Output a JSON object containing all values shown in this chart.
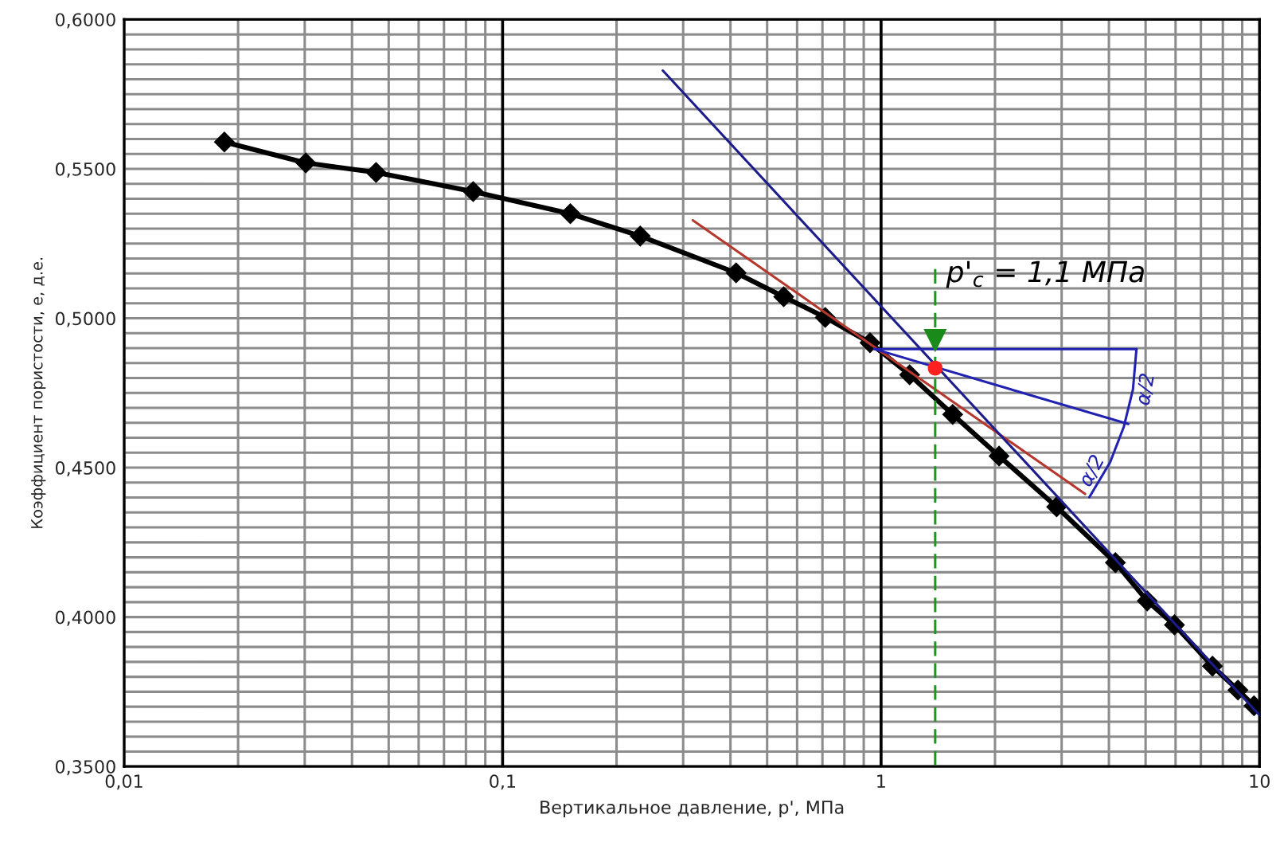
{
  "chart_data": {
    "type": "line",
    "xlabel": "Вертикальное давление, p', МПа",
    "ylabel": "Коэффициент пористости, е, д.е.",
    "log": "x",
    "xlim": [
      0.01,
      10
    ],
    "ylim": [
      0.35,
      0.6
    ],
    "xticks": [
      {
        "value": 0.01,
        "label": "0,01"
      },
      {
        "value": 0.02,
        "label": null
      },
      {
        "value": 0.03,
        "label": null
      },
      {
        "value": 0.04,
        "label": null
      },
      {
        "value": 0.05,
        "label": null
      },
      {
        "value": 0.06,
        "label": null
      },
      {
        "value": 0.07,
        "label": null
      },
      {
        "value": 0.08,
        "label": null
      },
      {
        "value": 0.09,
        "label": null
      },
      {
        "value": 0.1,
        "label": "0,1"
      },
      {
        "value": 0.2,
        "label": null
      },
      {
        "value": 0.3,
        "label": null
      },
      {
        "value": 0.4,
        "label": null
      },
      {
        "value": 0.5,
        "label": null
      },
      {
        "value": 0.6,
        "label": null
      },
      {
        "value": 0.7,
        "label": null
      },
      {
        "value": 0.8,
        "label": null
      },
      {
        "value": 0.9,
        "label": null
      },
      {
        "value": 1,
        "label": "1"
      },
      {
        "value": 2,
        "label": null
      },
      {
        "value": 3,
        "label": null
      },
      {
        "value": 4,
        "label": null
      },
      {
        "value": 5,
        "label": null
      },
      {
        "value": 6,
        "label": null
      },
      {
        "value": 7,
        "label": null
      },
      {
        "value": 8,
        "label": null
      },
      {
        "value": 9,
        "label": null
      },
      {
        "value": 10,
        "label": "10"
      }
    ],
    "yticks": [
      {
        "value": 0.35,
        "label": "0,3500"
      },
      {
        "value": 0.355,
        "label": null
      },
      {
        "value": 0.36,
        "label": null
      },
      {
        "value": 0.365,
        "label": null
      },
      {
        "value": 0.37,
        "label": null
      },
      {
        "value": 0.375,
        "label": null
      },
      {
        "value": 0.38,
        "label": null
      },
      {
        "value": 0.385,
        "label": null
      },
      {
        "value": 0.39,
        "label": null
      },
      {
        "value": 0.395,
        "label": null
      },
      {
        "value": 0.4,
        "label": "0,4000"
      },
      {
        "value": 0.405,
        "label": null
      },
      {
        "value": 0.41,
        "label": null
      },
      {
        "value": 0.415,
        "label": null
      },
      {
        "value": 0.42,
        "label": null
      },
      {
        "value": 0.425,
        "label": null
      },
      {
        "value": 0.43,
        "label": null
      },
      {
        "value": 0.435,
        "label": null
      },
      {
        "value": 0.44,
        "label": null
      },
      {
        "value": 0.445,
        "label": null
      },
      {
        "value": 0.45,
        "label": "0,4500"
      },
      {
        "value": 0.455,
        "label": null
      },
      {
        "value": 0.46,
        "label": null
      },
      {
        "value": 0.465,
        "label": null
      },
      {
        "value": 0.47,
        "label": null
      },
      {
        "value": 0.475,
        "label": null
      },
      {
        "value": 0.48,
        "label": null
      },
      {
        "value": 0.485,
        "label": null
      },
      {
        "value": 0.49,
        "label": null
      },
      {
        "value": 0.495,
        "label": null
      },
      {
        "value": 0.5,
        "label": "0,5000"
      },
      {
        "value": 0.505,
        "label": null
      },
      {
        "value": 0.51,
        "label": null
      },
      {
        "value": 0.515,
        "label": null
      },
      {
        "value": 0.52,
        "label": null
      },
      {
        "value": 0.525,
        "label": null
      },
      {
        "value": 0.53,
        "label": null
      },
      {
        "value": 0.535,
        "label": null
      },
      {
        "value": 0.54,
        "label": null
      },
      {
        "value": 0.545,
        "label": null
      },
      {
        "value": 0.55,
        "label": "0,5500"
      },
      {
        "value": 0.555,
        "label": null
      },
      {
        "value": 0.56,
        "label": null
      },
      {
        "value": 0.565,
        "label": null
      },
      {
        "value": 0.57,
        "label": null
      },
      {
        "value": 0.575,
        "label": null
      },
      {
        "value": 0.58,
        "label": null
      },
      {
        "value": 0.585,
        "label": null
      },
      {
        "value": 0.59,
        "label": null
      },
      {
        "value": 0.595,
        "label": null
      },
      {
        "value": 0.6,
        "label": "0,6000"
      }
    ],
    "grid": true,
    "ref_lines": [
      {
        "axis": "x",
        "value": 0.1,
        "color": "#000000"
      },
      {
        "axis": "x",
        "value": 1,
        "color": "#000000"
      }
    ],
    "series": [
      {
        "color": "#000000",
        "marker": "diamond",
        "line_style": "solid",
        "x": [
          0.0184,
          0.0302,
          0.0463,
          0.0836,
          0.151,
          0.231,
          0.414,
          0.553,
          0.712,
          0.935,
          1.19,
          1.546,
          2.05,
          2.91,
          4.16,
          5.05,
          5.96,
          7.51,
          8.77,
          9.67
        ],
        "values": [
          0.559,
          0.552,
          0.5488,
          0.5424,
          0.535,
          0.5275,
          0.5152,
          0.5072,
          0.5003,
          0.4918,
          0.4811,
          0.4678,
          0.4539,
          0.4369,
          0.4182,
          0.4054,
          0.3974,
          0.3836,
          0.3756,
          0.3703
        ]
      },
      {
        "type": "line",
        "color": "#b5382e",
        "marker": "none",
        "line_style": "solid",
        "x": [
          0.318,
          3.46
        ],
        "values": [
          0.5328,
          0.4412
        ]
      },
      {
        "type": "line",
        "color": "#1c1c8c",
        "marker": "none",
        "line_style": "solid",
        "x": [
          0.265,
          10
        ],
        "values": [
          0.5829,
          0.3672
        ]
      },
      {
        "type": "line",
        "color": "#2222b0",
        "marker": "none",
        "line_style": "solid",
        "x": [
          0.96,
          4.73
        ],
        "values": [
          0.4897,
          0.4897
        ]
      },
      {
        "type": "line",
        "color": "#2222b0",
        "marker": "none",
        "line_style": "solid",
        "x": [
          0.96,
          4.5
        ],
        "values": [
          0.4897,
          0.4646
        ]
      },
      {
        "type": "line",
        "color": "#2222b0",
        "marker": "none",
        "line_style": "solid",
        "x": [
          4.73,
          4.63,
          4.38,
          4.03,
          3.55
        ],
        "values": [
          0.4897,
          0.4762,
          0.4637,
          0.4518,
          0.4401
        ]
      },
      {
        "type": "line",
        "color": "#1a9a1a",
        "marker": "none",
        "line_style": "dashed",
        "x": [
          1.39,
          1.39
        ],
        "values": [
          0.5165,
          0.35
        ]
      },
      {
        "type": "scatter",
        "color": "#1a8a1a",
        "marker": "triangle_down",
        "x": [
          1.39
        ],
        "values": [
          0.4925
        ]
      },
      {
        "type": "scatter",
        "color": "#ff2020",
        "marker": "circle",
        "x": [
          1.39
        ],
        "values": [
          0.4833
        ]
      }
    ],
    "annotations": [
      "p'$_{c}$ = 1,1 МПа",
      {
        "text": "α/2",
        "x": 4.63,
        "y": 0.4762
      },
      {
        "text": "α/2",
        "x": 4.03,
        "y": 0.4518
      }
    ]
  }
}
